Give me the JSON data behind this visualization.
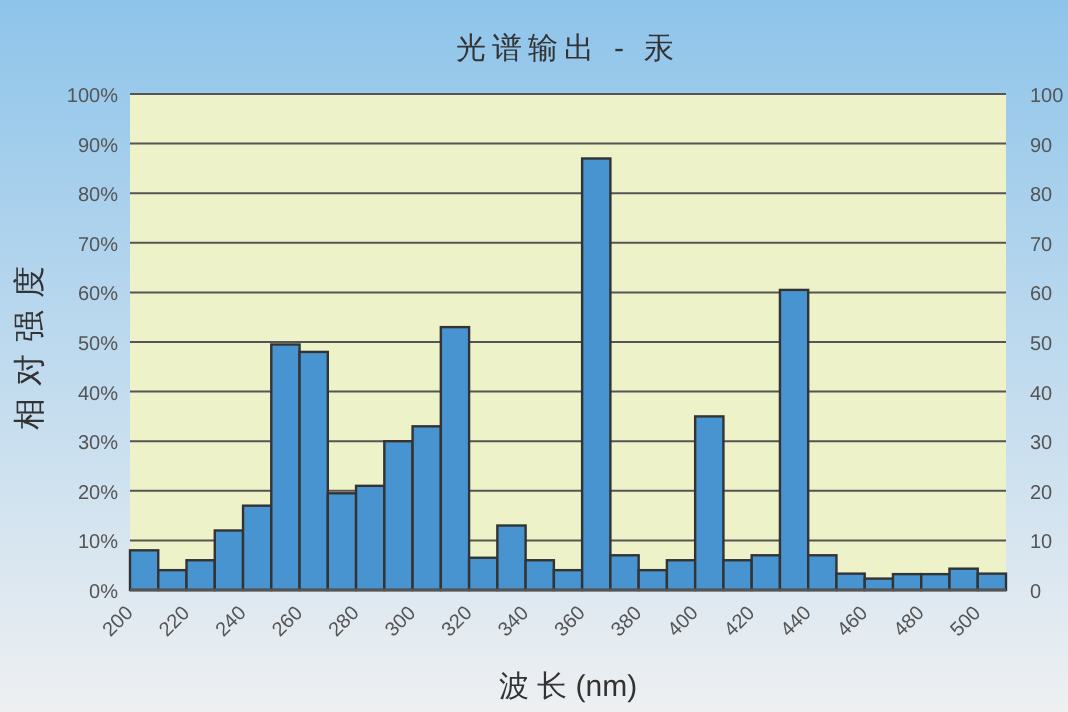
{
  "chart_data": {
    "type": "bar",
    "title": "光谱输出 - 汞",
    "xlabel": "波 长 (nm)",
    "ylabel": "相对强度",
    "categories": [
      "200",
      null,
      "220",
      null,
      "240",
      null,
      "260",
      null,
      "280",
      null,
      "300",
      null,
      "320",
      null,
      "340",
      null,
      "360",
      null,
      "380",
      null,
      "400",
      null,
      "420",
      null,
      "440",
      null,
      "460",
      null,
      "480",
      null,
      "500"
    ],
    "values": [
      8,
      4,
      6,
      12,
      17,
      49.5,
      48,
      19.5,
      21,
      30,
      33,
      53,
      6.5,
      13,
      6,
      4,
      87,
      7,
      4,
      6,
      35,
      6,
      7,
      60.5,
      7,
      3.3,
      2.3,
      3.2,
      3.2,
      4.3,
      3.3
    ],
    "color": "#4794d1",
    "ylim": [
      0,
      100
    ],
    "yticks": [
      {
        "value": 0,
        "label": "0%"
      },
      {
        "value": 10,
        "label": "10%"
      },
      {
        "value": 20,
        "label": "20%"
      },
      {
        "value": 30,
        "label": "30%"
      },
      {
        "value": 40,
        "label": "40%"
      },
      {
        "value": 50,
        "label": "50%"
      },
      {
        "value": 60,
        "label": "60%"
      },
      {
        "value": 70,
        "label": "70%"
      },
      {
        "value": 80,
        "label": "80%"
      },
      {
        "value": 90,
        "label": "90%"
      },
      {
        "value": 100,
        "label": "100%"
      }
    ],
    "y2lim": [
      0,
      100
    ],
    "y2ticks": [
      0,
      10,
      20,
      30,
      40,
      50,
      60,
      70,
      80,
      90,
      100
    ],
    "grid": "y"
  }
}
